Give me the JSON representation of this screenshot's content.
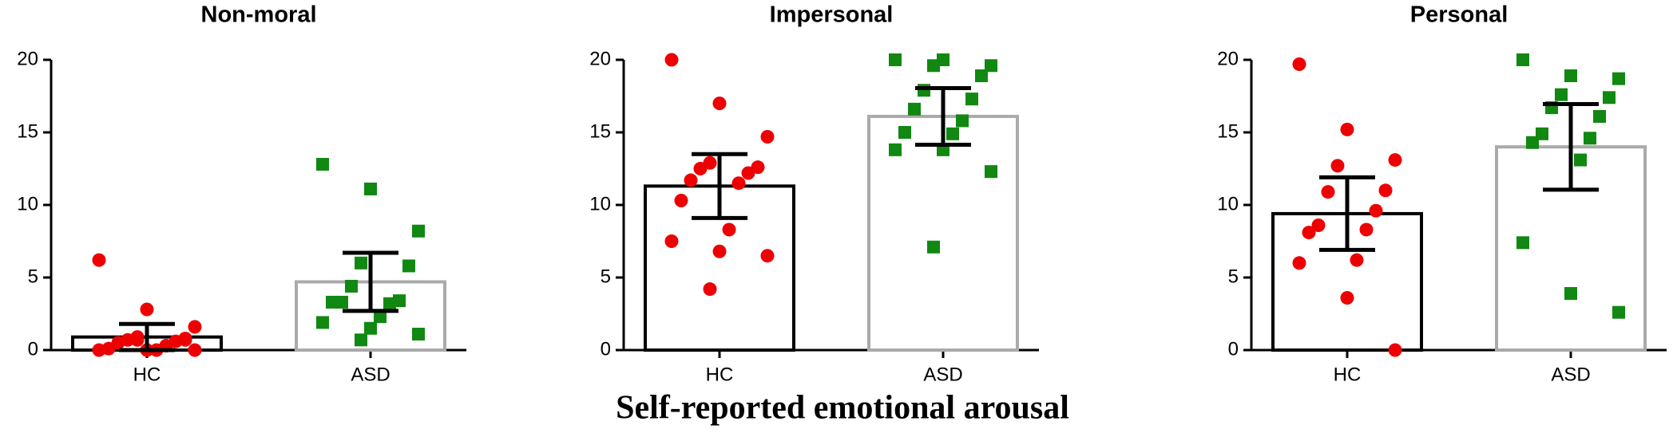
{
  "title": "Self-reported emotional arousal",
  "chart_data": [
    {
      "type": "bar",
      "title": "Non-moral",
      "categories": [
        "HC",
        "ASD"
      ],
      "values": [
        0.9,
        4.7
      ],
      "errors": [
        0.9,
        2.0
      ],
      "bar_edge_colors": [
        "#000000",
        "#aaaaaa"
      ],
      "points": [
        [
          6.2,
          2.8,
          1.6,
          0.9,
          0.8,
          0.7,
          0.6,
          0.5,
          0.3,
          0.1,
          0,
          0,
          0,
          0,
          0.7,
          0.7
        ],
        [
          12.8,
          11.1,
          8.2,
          6.0,
          5.8,
          4.4,
          3.4,
          3.3,
          3.2,
          3.3,
          2.3,
          1.9,
          1.5,
          1.1,
          0.7
        ]
      ],
      "point_colors": [
        "#ee0000",
        "#118811"
      ],
      "point_markers": [
        "circle",
        "square"
      ],
      "ylim": [
        0,
        20
      ],
      "yticks": [
        0,
        5,
        10,
        15,
        20
      ]
    },
    {
      "type": "bar",
      "title": "Impersonal",
      "categories": [
        "HC",
        "ASD"
      ],
      "values": [
        11.3,
        16.1
      ],
      "errors": [
        2.2,
        1.95
      ],
      "bar_edge_colors": [
        "#000000",
        "#aaaaaa"
      ],
      "points": [
        [
          20,
          17,
          14.7,
          12.9,
          12.6,
          12.5,
          12.2,
          11.7,
          11.5,
          10.3,
          8.3,
          7.5,
          6.8,
          6.5,
          4.2
        ],
        [
          20,
          20,
          19.6,
          19.6,
          18.9,
          17.9,
          17.3,
          16.6,
          15.8,
          15.0,
          14.9,
          13.8,
          13.8,
          12.3,
          7.1
        ]
      ],
      "point_colors": [
        "#ee0000",
        "#118811"
      ],
      "point_markers": [
        "circle",
        "square"
      ],
      "ylim": [
        0,
        20
      ],
      "yticks": [
        0,
        5,
        10,
        15,
        20
      ]
    },
    {
      "type": "bar",
      "title": "Personal",
      "categories": [
        "HC",
        "ASD"
      ],
      "values": [
        9.4,
        14.0
      ],
      "errors": [
        2.5,
        2.95
      ],
      "bar_edge_colors": [
        "#000000",
        "#aaaaaa"
      ],
      "points": [
        [
          19.7,
          15.2,
          13.1,
          12.7,
          11.0,
          10.9,
          9.6,
          8.6,
          8.3,
          8.1,
          6.2,
          6.0,
          3.6,
          0
        ],
        [
          20,
          18.9,
          18.7,
          17.6,
          17.4,
          16.7,
          16.1,
          14.9,
          14.6,
          14.3,
          13.1,
          7.4,
          3.9,
          2.6
        ]
      ],
      "point_colors": [
        "#ee0000",
        "#118811"
      ],
      "point_markers": [
        "circle",
        "square"
      ],
      "ylim": [
        0,
        20
      ],
      "yticks": [
        0,
        5,
        10,
        15,
        20
      ]
    }
  ]
}
